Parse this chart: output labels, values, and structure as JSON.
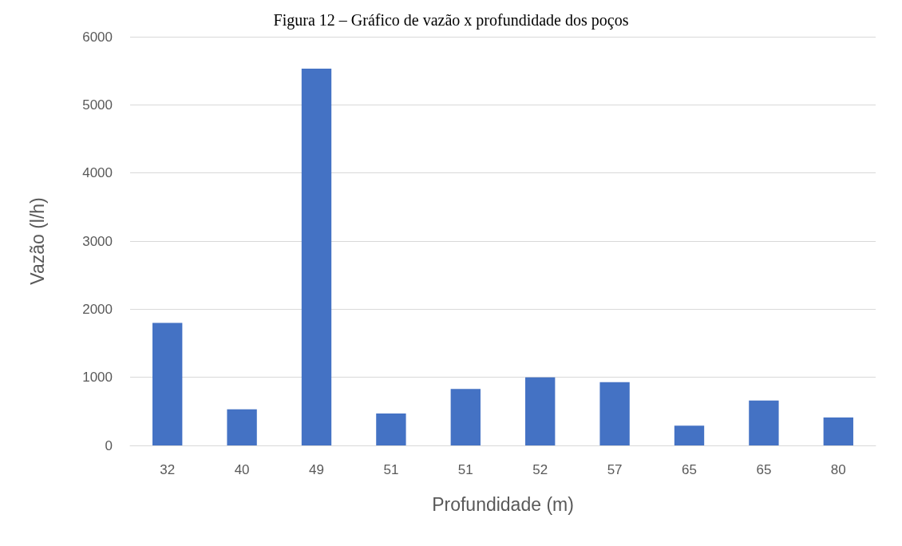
{
  "chart_data": {
    "type": "bar",
    "title": "Figura 12 – Gráfico de vazão x profundidade dos poços",
    "xlabel": "Profundidade (m)",
    "ylabel": "Vazão (l/h)",
    "categories": [
      "32",
      "40",
      "49",
      "51",
      "51",
      "52",
      "57",
      "65",
      "65",
      "80"
    ],
    "values": [
      1800,
      530,
      5530,
      470,
      830,
      1000,
      930,
      290,
      660,
      410
    ],
    "color": "#4472c4",
    "ylim": [
      0,
      6000
    ],
    "yticks": [
      0,
      1000,
      2000,
      3000,
      4000,
      5000,
      6000
    ],
    "grid": "y"
  }
}
